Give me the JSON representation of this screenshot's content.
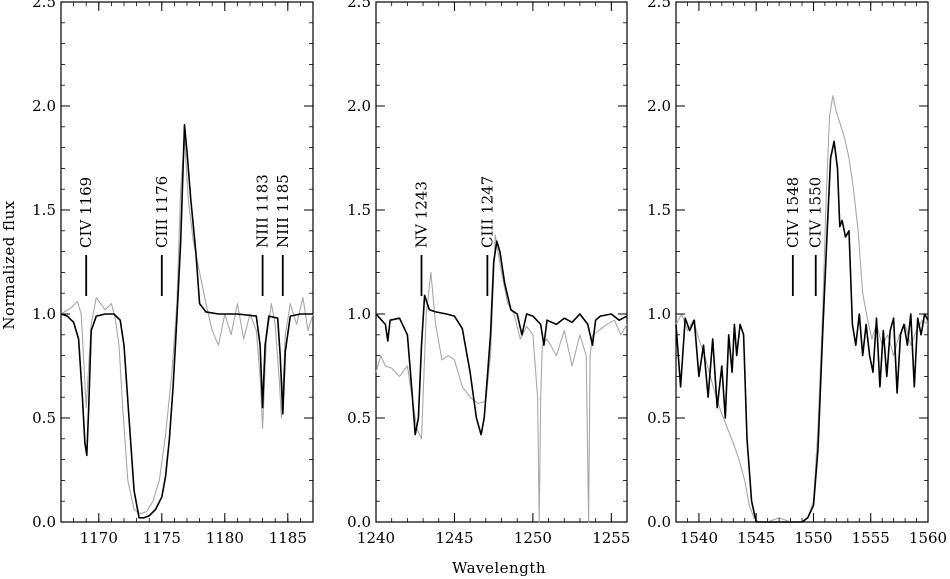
{
  "figure": {
    "xlabel": "Wavelength",
    "ylabel": "Normalized flux"
  },
  "colors": {
    "model": "#000000",
    "observed": "#a8a8a8",
    "axes": "#000000"
  },
  "chart_data": [
    {
      "type": "line",
      "xlim": [
        1167,
        1187
      ],
      "ylim": [
        0.0,
        2.5
      ],
      "xticks": [
        1170,
        1175,
        1180,
        1185
      ],
      "yticks": [
        0.0,
        0.5,
        1.0,
        1.5,
        2.0,
        2.5
      ],
      "ytick_labels": [
        "0.0",
        "0.5",
        "1.0",
        "1.5",
        "2.0",
        "2.5"
      ],
      "grid": false,
      "line_ids": [
        {
          "label": "CIV  1169",
          "x": 1169.0
        },
        {
          "label": "CIII  1176",
          "x": 1175.0
        },
        {
          "label": "NIII  1183",
          "x": 1183.0
        },
        {
          "label": "NIII  1185",
          "x": 1184.6
        }
      ],
      "series": [
        {
          "role": "model",
          "x": [
            1167.0,
            1167.5,
            1168.0,
            1168.4,
            1168.7,
            1168.9,
            1169.05,
            1169.2,
            1169.4,
            1169.8,
            1170.5,
            1171.2,
            1171.7,
            1172.0,
            1172.4,
            1172.8,
            1173.2,
            1173.6,
            1174.0,
            1174.5,
            1175.0,
            1175.3,
            1175.6,
            1175.9,
            1176.2,
            1176.5,
            1176.8,
            1177.0,
            1177.3,
            1177.7,
            1178.0,
            1178.5,
            1179.5,
            1181.0,
            1182.5,
            1182.8,
            1183.0,
            1183.2,
            1183.5,
            1184.2,
            1184.4,
            1184.6,
            1184.8,
            1185.2,
            1186.0,
            1187.0
          ],
          "y": [
            1.0,
            0.99,
            0.96,
            0.88,
            0.6,
            0.38,
            0.32,
            0.55,
            0.92,
            0.99,
            1.0,
            1.0,
            0.97,
            0.85,
            0.5,
            0.15,
            0.02,
            0.02,
            0.03,
            0.06,
            0.12,
            0.22,
            0.4,
            0.65,
            0.98,
            1.35,
            1.91,
            1.78,
            1.55,
            1.3,
            1.05,
            1.01,
            1.0,
            1.0,
            0.99,
            0.85,
            0.55,
            0.85,
            0.99,
            0.98,
            0.8,
            0.52,
            0.82,
            0.99,
            1.0,
            1.0
          ]
        },
        {
          "role": "observed",
          "x": [
            1167.0,
            1167.8,
            1168.3,
            1168.6,
            1169.0,
            1169.4,
            1169.8,
            1170.5,
            1171.0,
            1171.3,
            1171.6,
            1171.9,
            1172.3,
            1172.8,
            1173.3,
            1173.8,
            1174.3,
            1174.8,
            1175.3,
            1175.8,
            1176.2,
            1176.5,
            1176.8,
            1177.1,
            1177.5,
            1178.0,
            1178.5,
            1179.0,
            1179.5,
            1180.0,
            1180.5,
            1181.0,
            1181.5,
            1182.0,
            1182.5,
            1182.8,
            1183.0,
            1183.3,
            1183.7,
            1184.0,
            1184.3,
            1184.5,
            1184.8,
            1185.2,
            1185.7,
            1186.2,
            1186.6,
            1187.0
          ],
          "y": [
            1.0,
            1.03,
            1.06,
            1.0,
            0.55,
            0.95,
            1.08,
            1.02,
            1.05,
            0.98,
            0.85,
            0.55,
            0.2,
            0.06,
            0.04,
            0.05,
            0.1,
            0.2,
            0.42,
            0.72,
            1.05,
            1.6,
            1.85,
            1.55,
            1.35,
            1.2,
            1.05,
            0.92,
            0.85,
            1.0,
            0.9,
            1.05,
            0.88,
            1.0,
            0.92,
            0.7,
            0.45,
            0.88,
            1.05,
            0.95,
            0.7,
            0.5,
            0.9,
            1.05,
            0.95,
            1.08,
            0.92,
            1.0
          ]
        }
      ]
    },
    {
      "type": "line",
      "xlim": [
        1240,
        1256
      ],
      "ylim": [
        0.0,
        2.5
      ],
      "xticks": [
        1240,
        1245,
        1250,
        1255
      ],
      "yticks": [
        0.0,
        0.5,
        1.0,
        1.5,
        2.0,
        2.5
      ],
      "ytick_labels": [
        "0.0",
        "0.5",
        "1.0",
        "1.5",
        "2.0",
        "2.5"
      ],
      "grid": false,
      "line_ids": [
        {
          "label": "NV  1243",
          "x": 1242.9
        },
        {
          "label": "CIII  1247",
          "x": 1247.1
        }
      ],
      "series": [
        {
          "role": "model",
          "x": [
            1240.0,
            1240.6,
            1240.75,
            1240.9,
            1241.5,
            1242.0,
            1242.3,
            1242.5,
            1242.7,
            1242.9,
            1243.1,
            1243.4,
            1243.8,
            1244.5,
            1245.0,
            1245.5,
            1246.0,
            1246.4,
            1246.7,
            1246.9,
            1247.1,
            1247.3,
            1247.5,
            1247.7,
            1247.9,
            1248.2,
            1248.6,
            1249.0,
            1249.3,
            1249.6,
            1250.0,
            1250.5,
            1250.7,
            1250.9,
            1251.5,
            1252.0,
            1252.5,
            1253.0,
            1253.5,
            1253.8,
            1254.0,
            1254.3,
            1255.0,
            1255.5,
            1256.0
          ],
          "y": [
            1.0,
            0.95,
            0.87,
            0.97,
            0.98,
            0.9,
            0.62,
            0.42,
            0.5,
            0.85,
            1.09,
            1.02,
            1.01,
            1.0,
            0.99,
            0.93,
            0.72,
            0.5,
            0.42,
            0.5,
            0.7,
            0.9,
            1.25,
            1.35,
            1.3,
            1.15,
            1.02,
            1.0,
            0.9,
            1.0,
            0.99,
            0.95,
            0.85,
            0.97,
            0.95,
            0.98,
            0.96,
            1.0,
            0.95,
            0.85,
            0.97,
            0.99,
            1.0,
            0.97,
            0.99
          ]
        },
        {
          "role": "observed",
          "x": [
            1240.0,
            1240.3,
            1240.6,
            1241.0,
            1241.5,
            1242.0,
            1242.3,
            1242.6,
            1242.9,
            1243.2,
            1243.5,
            1243.8,
            1244.2,
            1244.6,
            1245.0,
            1245.5,
            1246.0,
            1246.5,
            1247.0,
            1247.3,
            1247.6,
            1248.0,
            1248.4,
            1248.8,
            1249.2,
            1249.6,
            1250.0,
            1250.3,
            1250.4,
            1250.5,
            1250.6,
            1250.9,
            1251.5,
            1252.0,
            1252.5,
            1253.0,
            1253.4,
            1253.55,
            1253.65,
            1253.8,
            1254.2,
            1254.7,
            1255.2,
            1255.6,
            1256.0
          ],
          "y": [
            0.72,
            0.8,
            0.75,
            0.74,
            0.7,
            0.75,
            0.6,
            0.45,
            0.4,
            1.0,
            1.2,
            0.95,
            0.78,
            0.8,
            0.78,
            0.65,
            0.6,
            0.57,
            0.58,
            0.8,
            1.38,
            1.2,
            1.05,
            1.0,
            0.88,
            0.94,
            0.9,
            0.6,
            0.0,
            0.6,
            0.85,
            0.88,
            0.8,
            0.92,
            0.75,
            0.9,
            0.8,
            0.0,
            0.8,
            0.9,
            0.92,
            0.95,
            0.97,
            0.9,
            0.95
          ]
        }
      ]
    },
    {
      "type": "line",
      "xlim": [
        1538,
        1560
      ],
      "ylim": [
        0.0,
        2.5
      ],
      "xticks": [
        1540,
        1545,
        1550,
        1555,
        1560
      ],
      "yticks": [
        0.0,
        0.5,
        1.0,
        1.5,
        2.0,
        2.5
      ],
      "ytick_labels": [
        "0.0",
        "0.5",
        "1.0",
        "1.5",
        "2.0",
        "2.5"
      ],
      "grid": false,
      "line_ids": [
        {
          "label": "CIV  1548",
          "x": 1548.2
        },
        {
          "label": "CIV  1550",
          "x": 1550.2
        }
      ],
      "series": [
        {
          "role": "model",
          "x": [
            1538.0,
            1538.4,
            1538.8,
            1539.2,
            1539.6,
            1540.0,
            1540.4,
            1540.8,
            1541.2,
            1541.6,
            1542.0,
            1542.3,
            1542.6,
            1542.9,
            1543.1,
            1543.3,
            1543.6,
            1543.9,
            1544.2,
            1544.6,
            1545.0,
            1546.0,
            1547.0,
            1548.0,
            1549.0,
            1549.5,
            1550.0,
            1550.4,
            1550.8,
            1551.2,
            1551.5,
            1551.8,
            1552.1,
            1552.3,
            1552.5,
            1552.8,
            1553.1,
            1553.4,
            1553.7,
            1554.0,
            1554.3,
            1554.6,
            1554.9,
            1555.2,
            1555.5,
            1555.8,
            1556.1,
            1556.4,
            1556.7,
            1557.0,
            1557.3,
            1557.6,
            1557.9,
            1558.2,
            1558.5,
            1558.8,
            1559.1,
            1559.4,
            1559.7,
            1560.0
          ],
          "y": [
            0.95,
            0.65,
            0.98,
            0.92,
            0.97,
            0.7,
            0.85,
            0.6,
            0.88,
            0.55,
            0.75,
            0.5,
            0.9,
            0.72,
            0.95,
            0.8,
            0.95,
            0.9,
            0.4,
            0.1,
            0.0,
            0.0,
            0.0,
            0.0,
            0.0,
            0.02,
            0.08,
            0.35,
            0.9,
            1.4,
            1.75,
            1.83,
            1.7,
            1.42,
            1.45,
            1.37,
            1.4,
            0.95,
            0.85,
            1.0,
            0.8,
            0.95,
            0.8,
            0.72,
            0.98,
            0.65,
            0.92,
            0.7,
            0.92,
            0.98,
            0.62,
            0.9,
            0.95,
            0.85,
            1.0,
            0.65,
            0.98,
            0.9,
            1.0,
            0.97
          ]
        },
        {
          "role": "observed",
          "x": [
            1538.0,
            1538.5,
            1539.0,
            1539.5,
            1540.0,
            1540.5,
            1541.0,
            1541.5,
            1542.0,
            1542.5,
            1543.0,
            1543.5,
            1544.0,
            1544.4,
            1544.8,
            1545.2,
            1546.0,
            1547.0,
            1548.0,
            1549.0,
            1549.5,
            1550.0,
            1550.4,
            1550.8,
            1551.1,
            1551.4,
            1551.7,
            1552.0,
            1552.3,
            1552.7,
            1553.1,
            1553.5,
            1553.9,
            1554.3,
            1554.7,
            1555.1,
            1555.5,
            1556.0,
            1556.5,
            1557.0,
            1557.5,
            1558.0,
            1558.5,
            1559.0,
            1559.5,
            1560.0
          ],
          "y": [
            0.95,
            1.0,
            0.92,
            0.97,
            0.88,
            0.8,
            0.7,
            0.6,
            0.52,
            0.45,
            0.38,
            0.3,
            0.2,
            0.08,
            0.02,
            0.0,
            0.0,
            0.02,
            0.0,
            0.0,
            0.02,
            0.1,
            0.45,
            1.0,
            1.55,
            1.95,
            2.05,
            1.97,
            1.92,
            1.85,
            1.75,
            1.6,
            1.4,
            1.1,
            0.98,
            0.88,
            0.95,
            0.85,
            0.9,
            0.8,
            0.9,
            0.95,
            0.85,
            0.92,
            0.97,
            0.95
          ]
        }
      ]
    }
  ]
}
